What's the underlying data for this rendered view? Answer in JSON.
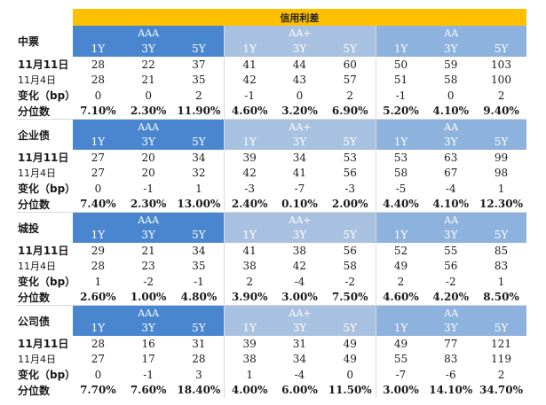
{
  "title": "信用利差",
  "groups": [
    "AAA",
    "AA+",
    "AA"
  ],
  "tenors": [
    "1Y",
    "3Y",
    "5Y"
  ],
  "sections": [
    {
      "name": "中票",
      "rows": [
        {
          "label": "11月11日",
          "values": [
            "28",
            "22",
            "37",
            "41",
            "44",
            "60",
            "50",
            "59",
            "103"
          ]
        },
        {
          "label": "11月4日",
          "values": [
            "28",
            "21",
            "35",
            "42",
            "43",
            "57",
            "51",
            "58",
            "100"
          ]
        },
        {
          "label": "变化（bp）",
          "values": [
            "0",
            "0",
            "2",
            "-1",
            "0",
            "2",
            "-1",
            "0",
            "2"
          ]
        },
        {
          "label": "分位数",
          "values": [
            "7.10%",
            "2.30%",
            "11.90%",
            "4.60%",
            "3.20%",
            "6.90%",
            "5.20%",
            "4.10%",
            "9.40%"
          ]
        }
      ]
    },
    {
      "name": "企业债",
      "rows": [
        {
          "label": "11月11日",
          "values": [
            "27",
            "20",
            "34",
            "39",
            "34",
            "53",
            "53",
            "63",
            "99"
          ]
        },
        {
          "label": "11月4日",
          "values": [
            "27",
            "20",
            "32",
            "42",
            "41",
            "56",
            "58",
            "67",
            "98"
          ]
        },
        {
          "label": "变化（bp）",
          "values": [
            "0",
            "-1",
            "1",
            "-3",
            "-7",
            "-3",
            "-5",
            "-4",
            "1"
          ]
        },
        {
          "label": "分位数",
          "values": [
            "7.40%",
            "2.30%",
            "13.00%",
            "2.40%",
            "0.10%",
            "2.00%",
            "4.40%",
            "4.10%",
            "12.30%"
          ]
        }
      ]
    },
    {
      "name": "城投",
      "rows": [
        {
          "label": "11月11日",
          "values": [
            "29",
            "21",
            "34",
            "41",
            "38",
            "56",
            "52",
            "55",
            "85"
          ]
        },
        {
          "label": "11月4日",
          "values": [
            "28",
            "23",
            "35",
            "38",
            "42",
            "58",
            "49",
            "56",
            "83"
          ]
        },
        {
          "label": "变化（bp）",
          "values": [
            "1",
            "-2",
            "-1",
            "2",
            "-4",
            "-2",
            "2",
            "-2",
            "1"
          ]
        },
        {
          "label": "分位数",
          "values": [
            "2.60%",
            "1.00%",
            "4.80%",
            "3.90%",
            "3.00%",
            "7.50%",
            "4.60%",
            "4.20%",
            "8.50%"
          ]
        }
      ]
    },
    {
      "name": "公司债",
      "rows": [
        {
          "label": "11月11日",
          "values": [
            "28",
            "16",
            "31",
            "39",
            "31",
            "49",
            "49",
            "77",
            "121"
          ]
        },
        {
          "label": "11月4日",
          "values": [
            "27",
            "17",
            "28",
            "38",
            "34",
            "49",
            "55",
            "83",
            "119"
          ]
        },
        {
          "label": "变化（bp）",
          "values": [
            "0",
            "-1",
            "3",
            "1",
            "-4",
            "0",
            "-7",
            "-6",
            "2"
          ]
        },
        {
          "label": "分位数",
          "values": [
            "7.70%",
            "7.60%",
            "18.40%",
            "4.00%",
            "6.00%",
            "11.50%",
            "3.00%",
            "14.10%",
            "34.70%"
          ]
        }
      ]
    }
  ],
  "colors": {
    "title_bg": "#ffc000",
    "aaa_header": "#4a86d0",
    "aa_plus_header": "#a9c1e0",
    "aa_header": "#8eb2de"
  }
}
